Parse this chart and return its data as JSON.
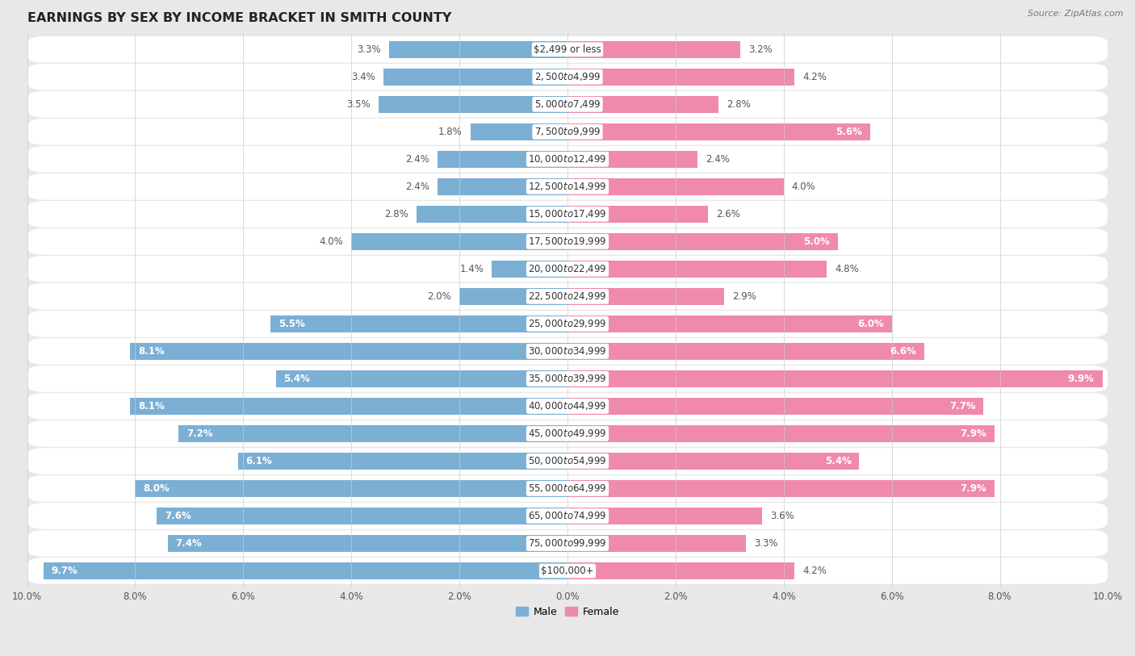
{
  "title": "EARNINGS BY SEX BY INCOME BRACKET IN SMITH COUNTY",
  "source": "Source: ZipAtlas.com",
  "categories": [
    "$2,499 or less",
    "$2,500 to $4,999",
    "$5,000 to $7,499",
    "$7,500 to $9,999",
    "$10,000 to $12,499",
    "$12,500 to $14,999",
    "$15,000 to $17,499",
    "$17,500 to $19,999",
    "$20,000 to $22,499",
    "$22,500 to $24,999",
    "$25,000 to $29,999",
    "$30,000 to $34,999",
    "$35,000 to $39,999",
    "$40,000 to $44,999",
    "$45,000 to $49,999",
    "$50,000 to $54,999",
    "$55,000 to $64,999",
    "$65,000 to $74,999",
    "$75,000 to $99,999",
    "$100,000+"
  ],
  "male_values": [
    3.3,
    3.4,
    3.5,
    1.8,
    2.4,
    2.4,
    2.8,
    4.0,
    1.4,
    2.0,
    5.5,
    8.1,
    5.4,
    8.1,
    7.2,
    6.1,
    8.0,
    7.6,
    7.4,
    9.7
  ],
  "female_values": [
    3.2,
    4.2,
    2.8,
    5.6,
    2.4,
    4.0,
    2.6,
    5.0,
    4.8,
    2.9,
    6.0,
    6.6,
    9.9,
    7.7,
    7.9,
    5.4,
    7.9,
    3.6,
    3.3,
    4.2
  ],
  "male_color": "#7bafd4",
  "female_color": "#f08aaa",
  "axis_max": 10.0,
  "background_color": "#e8e8e8",
  "row_color": "#ffffff",
  "row_alt_color": "#f5f5f5",
  "title_fontsize": 11.5,
  "label_fontsize": 8.5,
  "tick_fontsize": 8.5,
  "category_fontsize": 8.5,
  "source_fontsize": 8
}
